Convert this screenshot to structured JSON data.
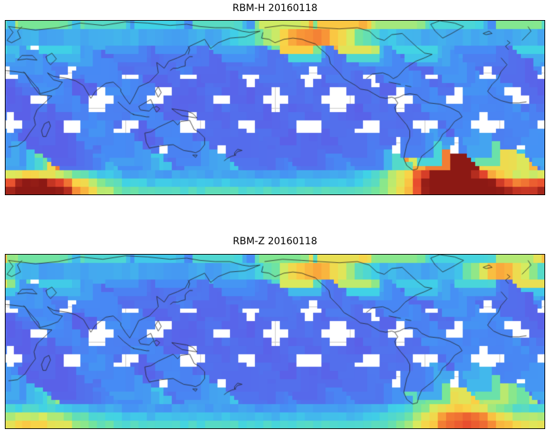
{
  "page": {
    "background": "#ffffff"
  },
  "chart_data": [
    {
      "type": "heatmap",
      "title": "RBM-H 20160118",
      "variable": "RBM-H",
      "date": "20160118",
      "projection": "equirectangular",
      "lon_range": [
        20,
        380
      ],
      "lat_range": [
        -75,
        75
      ],
      "grid": {
        "lon_step": 50,
        "lat_step": 30,
        "color": "#c9c9c9",
        "visible": true
      },
      "swath": {
        "ascending_spacing_deg": 40,
        "track_lon_span_deg": 130,
        "ascending_phase_deg": 12,
        "descending_phase_deg": 33,
        "tracks_per_direction": 12
      },
      "polar_bands": {
        "north_lats": [
          58,
          64
        ],
        "south_lats": [
          -62,
          -68,
          -74
        ]
      },
      "field": {
        "base": 0.07,
        "lat_gradient": 0.32,
        "hotspots": [
          {
            "name": "south-atlantic-anomaly",
            "lon": 318,
            "lat": -52,
            "sx": 36,
            "sy": 15,
            "amp": 1.0
          },
          {
            "name": "saa-polar-band",
            "lon": 327,
            "lat": -72,
            "sx": 32,
            "sy": 9,
            "amp": 0.9
          },
          {
            "name": "south-indian-corner",
            "lon": 42,
            "lat": -72,
            "sx": 38,
            "sy": 12,
            "amp": 0.8
          },
          {
            "name": "north-pacific-auroral",
            "lon": 228,
            "lat": 66,
            "sx": 34,
            "sy": 10,
            "amp": 0.55
          }
        ]
      },
      "colormap": [
        [
          0.0,
          "#5a60e8"
        ],
        [
          0.18,
          "#468cf5"
        ],
        [
          0.32,
          "#40d2e6"
        ],
        [
          0.45,
          "#78e696"
        ],
        [
          0.55,
          "#d7eb5f"
        ],
        [
          0.65,
          "#fad246"
        ],
        [
          0.75,
          "#f89637"
        ],
        [
          0.87,
          "#e6462d"
        ],
        [
          1.0,
          "#8c1914"
        ]
      ]
    },
    {
      "type": "heatmap",
      "title": "RBM-Z 20160118",
      "variable": "RBM-Z",
      "date": "20160118",
      "projection": "equirectangular",
      "lon_range": [
        20,
        380
      ],
      "lat_range": [
        -75,
        75
      ],
      "grid": {
        "lon_step": 50,
        "lat_step": 30,
        "color": "#c9c9c9",
        "visible": true
      },
      "swath": {
        "ascending_spacing_deg": 40,
        "track_lon_span_deg": 130,
        "ascending_phase_deg": 12,
        "descending_phase_deg": 33,
        "tracks_per_direction": 12
      },
      "polar_bands": {
        "north_lats": [
          58,
          64
        ],
        "south_lats": [
          -62,
          -68,
          -74
        ]
      },
      "field": {
        "base": 0.07,
        "lat_gradient": 0.3,
        "hotspots": [
          {
            "name": "south-atlantic-anomaly",
            "lon": 325,
            "lat": -50,
            "sx": 34,
            "sy": 18,
            "amp": 0.5
          },
          {
            "name": "saa-polar-band",
            "lon": 330,
            "lat": -72,
            "sx": 32,
            "sy": 9,
            "amp": 0.45
          },
          {
            "name": "south-indian-corner",
            "lon": 42,
            "lat": -72,
            "sx": 38,
            "sy": 11,
            "amp": 0.3
          },
          {
            "name": "north-pacific-auroral",
            "lon": 230,
            "lat": 66,
            "sx": 30,
            "sy": 9,
            "amp": 0.5
          },
          {
            "name": "north-atlantic-auroral",
            "lon": 355,
            "lat": 64,
            "sx": 22,
            "sy": 8,
            "amp": 0.5
          }
        ]
      },
      "colormap": [
        [
          0.0,
          "#5a60e8"
        ],
        [
          0.18,
          "#468cf5"
        ],
        [
          0.32,
          "#40d2e6"
        ],
        [
          0.45,
          "#78e696"
        ],
        [
          0.55,
          "#d7eb5f"
        ],
        [
          0.65,
          "#fad246"
        ],
        [
          0.75,
          "#f89637"
        ],
        [
          0.87,
          "#e6462d"
        ],
        [
          1.0,
          "#8c1914"
        ]
      ]
    }
  ]
}
